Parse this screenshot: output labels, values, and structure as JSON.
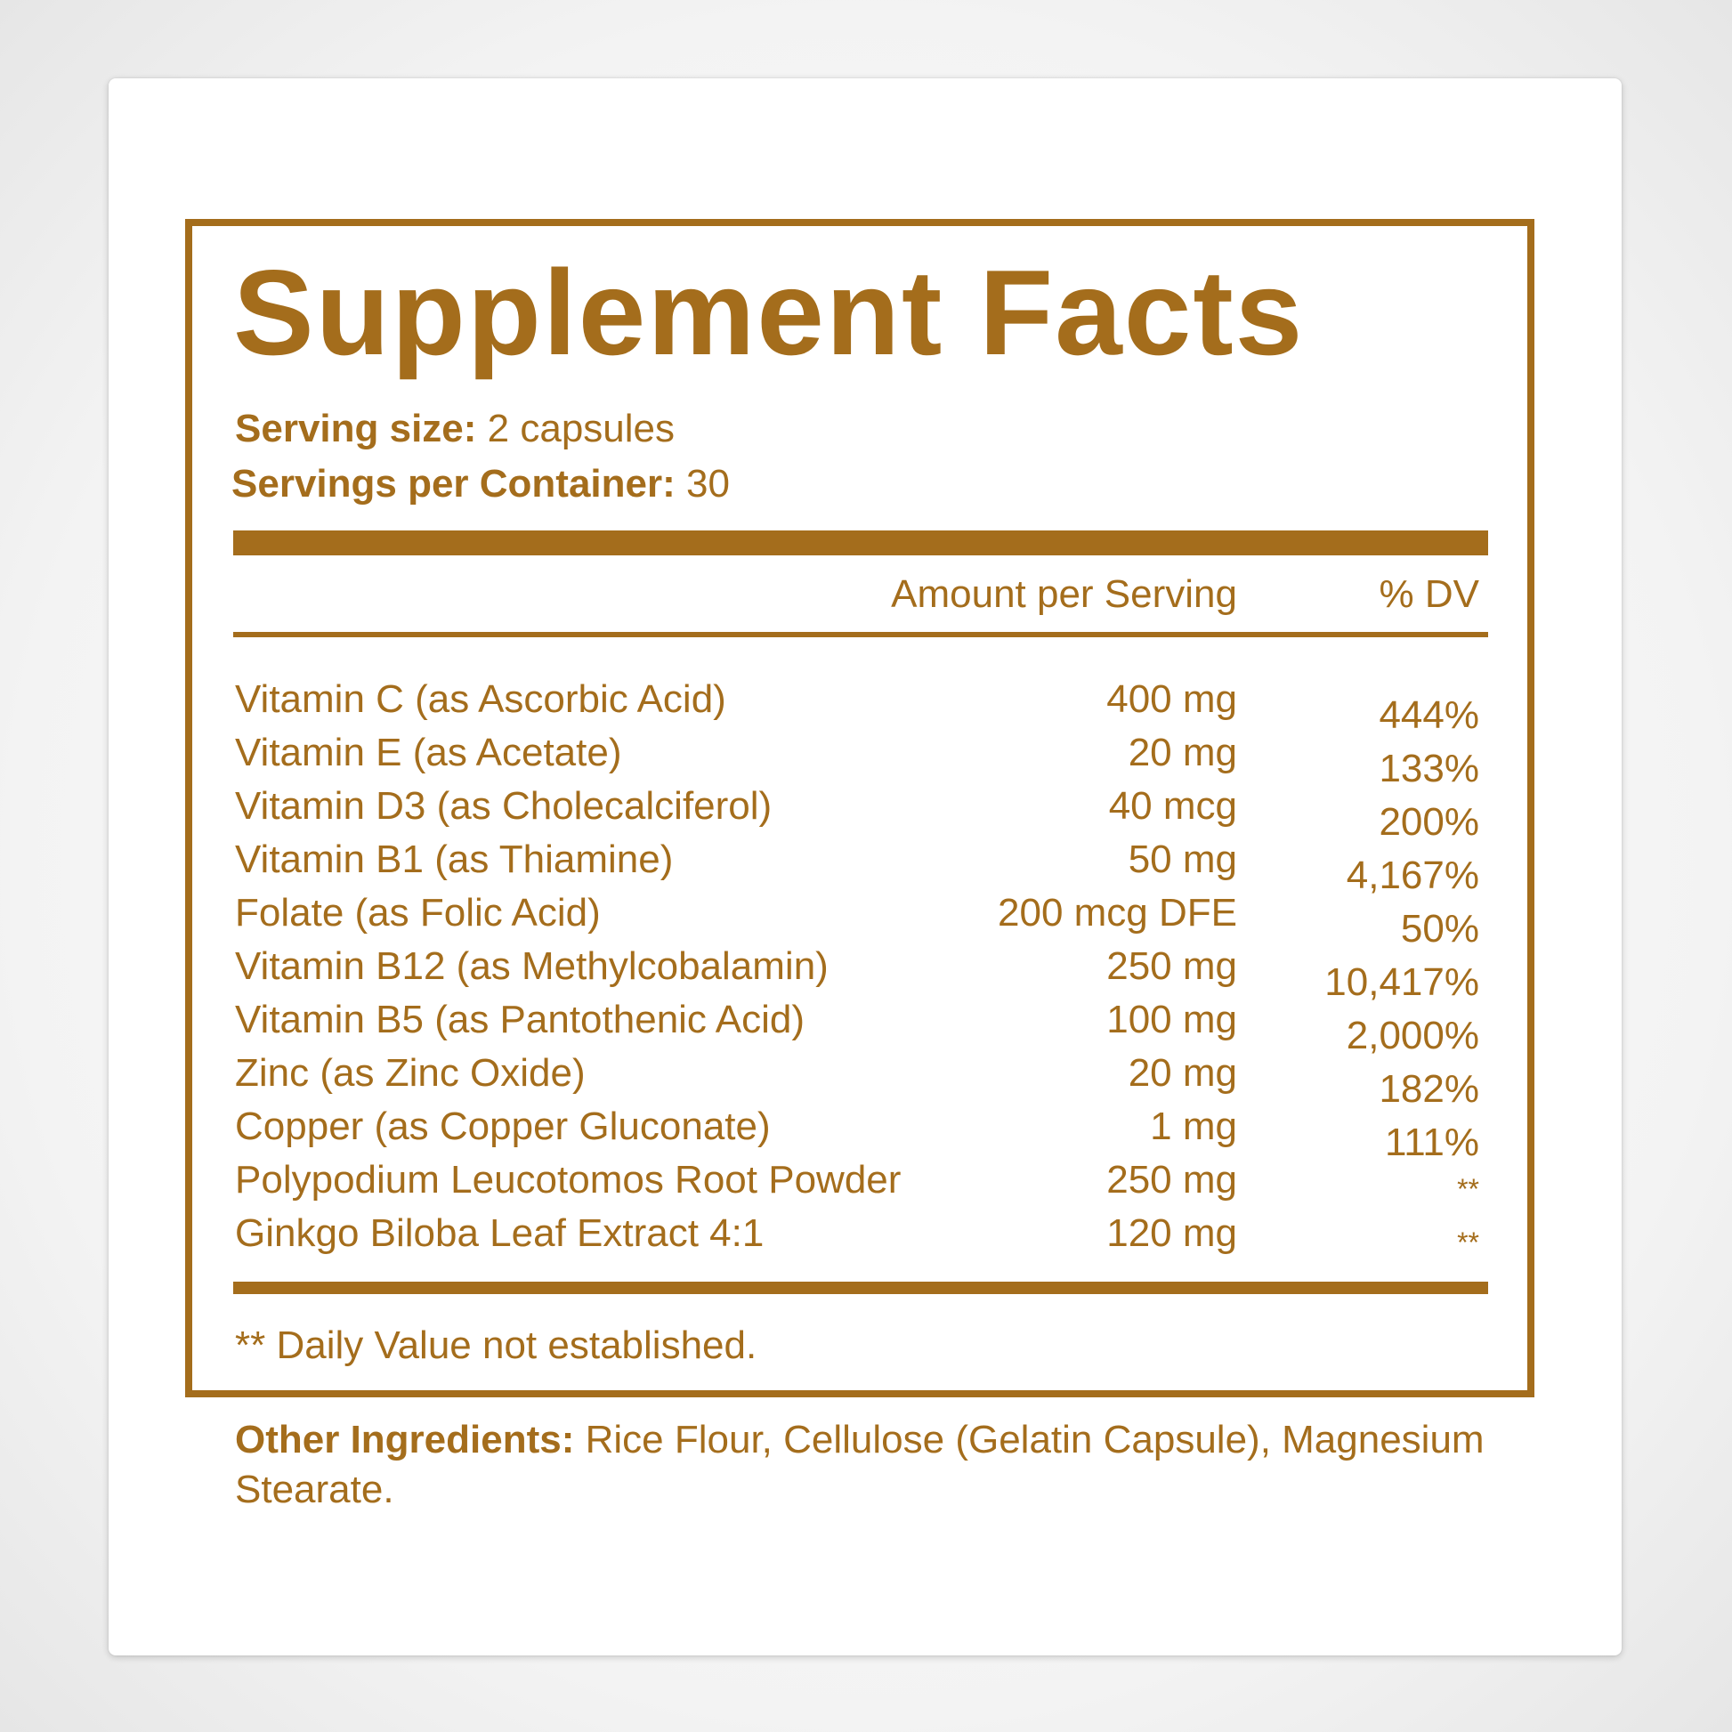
{
  "label": {
    "title": "Supplement Facts",
    "serving_size_label": "Serving size:",
    "serving_size_value": " 2 capsules",
    "servings_per_container_label": "Servings per Container:",
    "servings_per_container_value": " 30",
    "column_amount": "Amount per Serving",
    "column_dv": "% DV",
    "rows": [
      {
        "name": "Vitamin C (as Ascorbic Acid)",
        "amount": "400 mg",
        "dv": "444%"
      },
      {
        "name": "Vitamin E (as Acetate)",
        "amount": "20 mg",
        "dv": "133%"
      },
      {
        "name": "Vitamin D3 (as Cholecalciferol)",
        "amount": "40 mcg",
        "dv": "200%"
      },
      {
        "name": "Vitamin B1 (as Thiamine)",
        "amount": "50 mg",
        "dv": "4,167%"
      },
      {
        "name": "Folate (as Folic Acid)",
        "amount": "200 mcg DFE",
        "dv": "50%"
      },
      {
        "name": "Vitamin B12 (as Methylcobalamin)",
        "amount": "250 mg",
        "dv": "10,417%"
      },
      {
        "name": "Vitamin B5 (as Pantothenic Acid)",
        "amount": "100 mg",
        "dv": "2,000%"
      },
      {
        "name": "Zinc (as Zinc Oxide)",
        "amount": "20 mg",
        "dv": "182%"
      },
      {
        "name": "Copper (as Copper Gluconate)",
        "amount": "1 mg",
        "dv": "111%"
      },
      {
        "name": "Polypodium Leucotomos Root Powder",
        "amount": "250 mg",
        "dv": "**"
      },
      {
        "name": "Ginkgo Biloba Leaf Extract 4:1",
        "amount": "120 mg",
        "dv": "**"
      }
    ],
    "footnote": "** Daily Value not established.",
    "other_ingredients_label": "Other Ingredients:",
    "other_ingredients_value": " Rice Flour, Cellulose (Gelatin Capsule), Magnesium Stearate."
  },
  "colors": {
    "accent": "#a46d1c",
    "card": "#ffffff"
  }
}
